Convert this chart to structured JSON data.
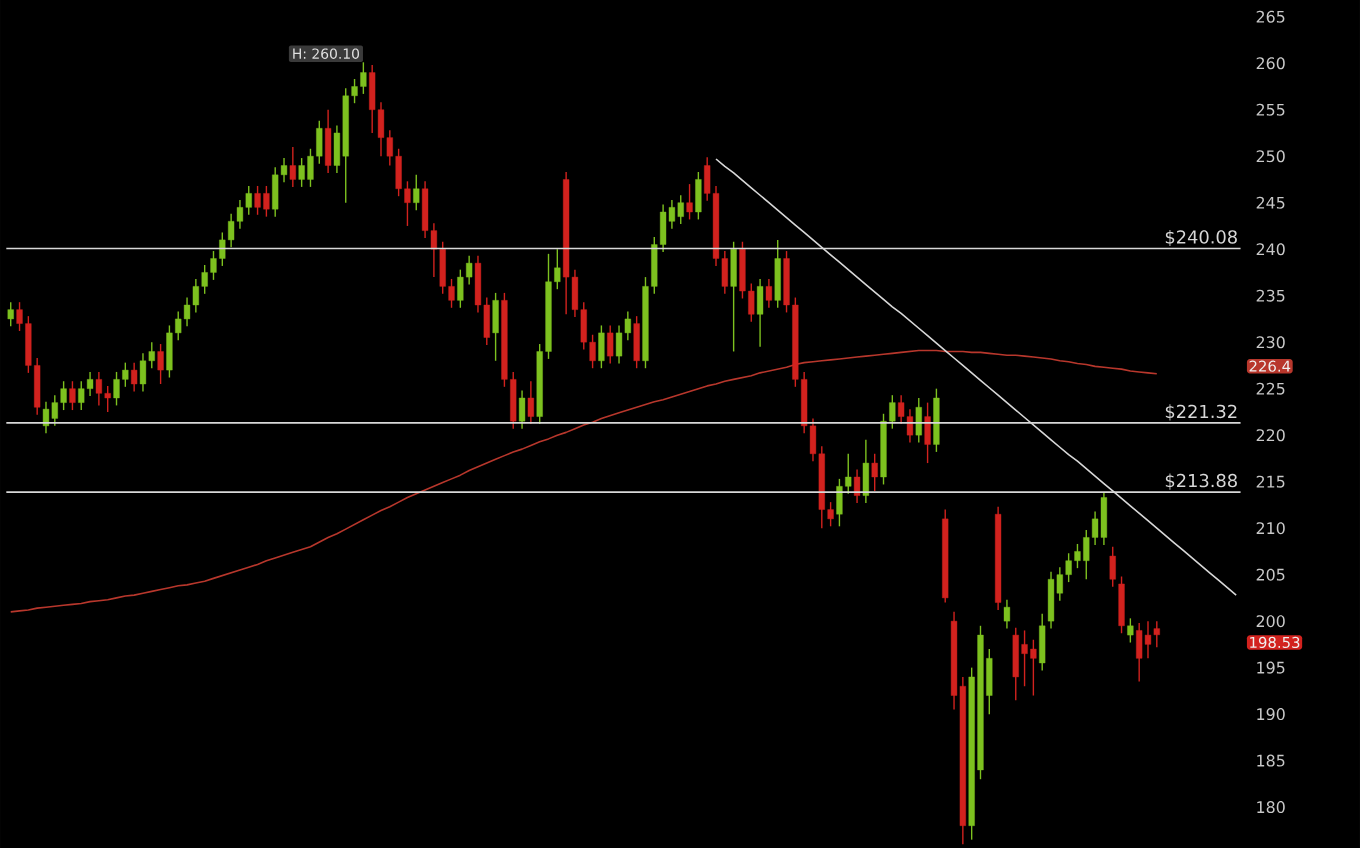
{
  "chart_data": {
    "type": "candlestick",
    "categories": [
      null,
      null,
      null,
      null,
      null,
      null,
      null,
      null,
      null,
      null,
      null,
      null,
      null,
      null,
      null,
      null,
      null,
      null,
      null,
      null,
      null,
      null,
      null,
      null,
      null,
      null,
      null,
      null,
      null,
      null,
      null,
      null,
      null,
      null,
      null,
      null,
      null,
      null,
      null,
      null,
      null,
      null,
      null,
      null,
      null,
      null,
      null,
      null,
      null,
      null,
      null,
      null,
      null,
      null,
      null,
      null,
      null,
      null,
      null,
      null,
      null,
      null,
      null,
      null,
      null,
      null,
      null,
      null,
      null,
      null,
      null,
      null,
      null,
      null,
      null,
      null,
      null,
      null,
      null,
      null,
      null,
      null,
      null,
      null,
      null,
      null,
      null,
      null,
      null,
      null,
      null,
      null,
      null,
      null,
      null,
      null,
      null,
      null,
      null,
      null,
      null,
      null,
      null,
      null,
      null,
      null,
      null,
      null,
      null,
      null,
      null,
      null,
      null,
      null,
      null,
      null,
      null,
      null,
      null,
      null,
      null,
      null,
      null,
      null,
      null,
      null,
      null,
      null,
      null,
      null,
      null,
      null,
      null,
      null,
      null,
      null,
      null,
      null,
      null,
      null
    ],
    "ohlc": [
      [
        232.5,
        234.3,
        231.7,
        233.5
      ],
      [
        233.5,
        234.3,
        231.2,
        232
      ],
      [
        232,
        232.8,
        226.7,
        227.5
      ],
      [
        227.5,
        228.3,
        222.2,
        223
      ],
      [
        221,
        223.6,
        220.2,
        222.8
      ],
      [
        221.8,
        224.3,
        221,
        223.5
      ],
      [
        223.5,
        225.8,
        222.7,
        225
      ],
      [
        225,
        225.8,
        222.7,
        223.5
      ],
      [
        223.5,
        225.8,
        222.7,
        225
      ],
      [
        225,
        226.8,
        224.2,
        226
      ],
      [
        226,
        226.8,
        223.2,
        224.5
      ],
      [
        224.5,
        225.3,
        222.5,
        224
      ],
      [
        224,
        226.8,
        223.2,
        226
      ],
      [
        226,
        227.8,
        225.2,
        227
      ],
      [
        227,
        227.8,
        224.7,
        225.5
      ],
      [
        225.5,
        228.8,
        224.7,
        228
      ],
      [
        228,
        230,
        227.2,
        229
      ],
      [
        229,
        229.8,
        225.5,
        227
      ],
      [
        227,
        231.8,
        226.2,
        231
      ],
      [
        231,
        233.3,
        230.2,
        232.5
      ],
      [
        232.5,
        234.8,
        231.7,
        234
      ],
      [
        234,
        236.8,
        233.2,
        236
      ],
      [
        236,
        238.3,
        235.2,
        237.5
      ],
      [
        237.5,
        239.8,
        236.7,
        239
      ],
      [
        239,
        241.8,
        238.2,
        241
      ],
      [
        241,
        243.8,
        240.2,
        243
      ],
      [
        243,
        245.3,
        242.2,
        244.5
      ],
      [
        244.5,
        246.8,
        243.7,
        246
      ],
      [
        246,
        246.8,
        243.7,
        244.5
      ],
      [
        246,
        246.8,
        243.5,
        244.3
      ],
      [
        244.3,
        248.8,
        243.5,
        248
      ],
      [
        248,
        249.8,
        247.2,
        249
      ],
      [
        249,
        251,
        246.7,
        247.5
      ],
      [
        247.5,
        249.8,
        246.7,
        249
      ],
      [
        247.5,
        250.8,
        246.7,
        250
      ],
      [
        250,
        253.8,
        249.2,
        253
      ],
      [
        253,
        255,
        248.2,
        249
      ],
      [
        249,
        253.3,
        248.2,
        252.5
      ],
      [
        250,
        257.3,
        245,
        256.5
      ],
      [
        256.5,
        258.3,
        255.7,
        257.5
      ],
      [
        257.5,
        260.1,
        256.7,
        259
      ],
      [
        259,
        259.8,
        252.5,
        255
      ],
      [
        255,
        255.8,
        250,
        252
      ],
      [
        252,
        252.8,
        249,
        250
      ],
      [
        250,
        250.8,
        245.7,
        246.5
      ],
      [
        246.5,
        247.3,
        242.5,
        245
      ],
      [
        245,
        248,
        244.2,
        246.5
      ],
      [
        246.5,
        247.3,
        241.2,
        242
      ],
      [
        242,
        242.8,
        237,
        240
      ],
      [
        240,
        240.8,
        235.2,
        236
      ],
      [
        236,
        236.8,
        233.7,
        234.5
      ],
      [
        234.5,
        237.8,
        233.7,
        237
      ],
      [
        237,
        239.3,
        236.2,
        238.5
      ],
      [
        238.5,
        239.3,
        233.2,
        234
      ],
      [
        234,
        234.8,
        229.7,
        230.5
      ],
      [
        231,
        235.3,
        228,
        234.5
      ],
      [
        234.5,
        235.3,
        225.2,
        226
      ],
      [
        226,
        226.8,
        220.7,
        221.5
      ],
      [
        221.5,
        224.8,
        220.7,
        224
      ],
      [
        224,
        225.8,
        221.2,
        222
      ],
      [
        222,
        229.8,
        221.2,
        229
      ],
      [
        229,
        239.5,
        228.2,
        236.5
      ],
      [
        236.5,
        240,
        235.7,
        238
      ],
      [
        247.5,
        248.3,
        233,
        237
      ],
      [
        237,
        237.8,
        232.7,
        233.5
      ],
      [
        233.5,
        234.3,
        229.2,
        230
      ],
      [
        230,
        230.8,
        227.2,
        228
      ],
      [
        228,
        231.8,
        227.2,
        231
      ],
      [
        231,
        231.8,
        227.7,
        228.5
      ],
      [
        228.5,
        231.8,
        227.7,
        231
      ],
      [
        231,
        233.3,
        230.2,
        232.5
      ],
      [
        232,
        232.8,
        227.2,
        228
      ],
      [
        228,
        237,
        227.2,
        236
      ],
      [
        236,
        241.3,
        235.2,
        240.5
      ],
      [
        240.5,
        244.8,
        239.7,
        244
      ],
      [
        243,
        245.3,
        242.2,
        244.5
      ],
      [
        243.5,
        245.8,
        242.7,
        245
      ],
      [
        245,
        247,
        243.2,
        244
      ],
      [
        244,
        248.3,
        243.2,
        247.5
      ],
      [
        249,
        249.9,
        245.2,
        246
      ],
      [
        246,
        246.8,
        238.2,
        239
      ],
      [
        239,
        239.8,
        235.2,
        236
      ],
      [
        236,
        240.8,
        229,
        240
      ],
      [
        240,
        240.8,
        234.7,
        235.5
      ],
      [
        235.5,
        236.3,
        232.2,
        233
      ],
      [
        233,
        236.8,
        229.5,
        236
      ],
      [
        236,
        236.8,
        233.7,
        234.5
      ],
      [
        234.5,
        241,
        233.7,
        239
      ],
      [
        239,
        239.8,
        233.2,
        234
      ],
      [
        234,
        234.8,
        225.2,
        226
      ],
      [
        226,
        226.8,
        220.2,
        221
      ],
      [
        221,
        221.8,
        217.2,
        218
      ],
      [
        218,
        218.8,
        210,
        212
      ],
      [
        212,
        212.8,
        210.2,
        211
      ],
      [
        211.5,
        215.3,
        210.2,
        214.5
      ],
      [
        214.5,
        218,
        213.7,
        215.5
      ],
      [
        215.5,
        216.3,
        212.7,
        213.5
      ],
      [
        213.5,
        219.5,
        212.7,
        217
      ],
      [
        217,
        218,
        214,
        215.5
      ],
      [
        215.5,
        222.3,
        214.7,
        221.5
      ],
      [
        221.5,
        224.3,
        220.7,
        223.5
      ],
      [
        223.5,
        224.3,
        221.2,
        222
      ],
      [
        222,
        222.8,
        219.2,
        220
      ],
      [
        220,
        224,
        219.2,
        223
      ],
      [
        222,
        223.5,
        217,
        219
      ],
      [
        219,
        225,
        218.2,
        224
      ],
      [
        211,
        212,
        202,
        202.5
      ],
      [
        200,
        201,
        190.5,
        192
      ],
      [
        193,
        194,
        176,
        178
      ],
      [
        178,
        195,
        176.5,
        194
      ],
      [
        184,
        199.5,
        183,
        198.5
      ],
      [
        192,
        197,
        190,
        196
      ],
      [
        211.5,
        212.3,
        201.2,
        202
      ],
      [
        200,
        202.3,
        199.2,
        201.5
      ],
      [
        198.5,
        199.3,
        191.5,
        194
      ],
      [
        197.5,
        199,
        193,
        196.5
      ],
      [
        197,
        198,
        192,
        196
      ],
      [
        195.5,
        200.8,
        194.7,
        199.5
      ],
      [
        200,
        205.3,
        199.2,
        204.5
      ],
      [
        203,
        205.8,
        202.2,
        205
      ],
      [
        205,
        207.3,
        204.2,
        206.5
      ],
      [
        206.5,
        208.3,
        205.7,
        207.5
      ],
      [
        206.5,
        209.8,
        204.5,
        209
      ],
      [
        209,
        211.8,
        208.2,
        211
      ],
      [
        209,
        213.9,
        208.2,
        213.3
      ],
      [
        207,
        208,
        203.7,
        204.5
      ],
      [
        204,
        204.8,
        198.7,
        199.5
      ],
      [
        198.5,
        200.3,
        197.7,
        199.5
      ],
      [
        199,
        199.8,
        193.5,
        196
      ],
      [
        198.5,
        200,
        196,
        197.5
      ],
      [
        199.2,
        200,
        197.2,
        198.53
      ],
      null,
      null,
      null,
      null,
      null,
      null,
      null,
      null,
      null
    ],
    "colors": [
      "#7dc11f",
      "#d2221e",
      "#d2221e",
      "#d2221e",
      "#7dc11f",
      "#7dc11f",
      "#7dc11f",
      "#d2221e",
      "#7dc11f",
      "#7dc11f",
      "#d2221e",
      "#d2221e",
      "#7dc11f",
      "#7dc11f",
      "#d2221e",
      "#7dc11f",
      "#7dc11f",
      "#d2221e",
      "#7dc11f",
      "#7dc11f",
      "#7dc11f",
      "#7dc11f",
      "#7dc11f",
      "#7dc11f",
      "#7dc11f",
      "#7dc11f",
      "#7dc11f",
      "#7dc11f",
      "#d2221e",
      "#d2221e",
      "#7dc11f",
      "#7dc11f",
      "#d2221e",
      "#7dc11f",
      "#7dc11f",
      "#7dc11f",
      "#d2221e",
      "#7dc11f",
      "#7dc11f",
      "#7dc11f",
      "#7dc11f",
      "#d2221e",
      "#d2221e",
      "#d2221e",
      "#d2221e",
      "#d2221e",
      "#7dc11f",
      "#d2221e",
      "#d2221e",
      "#d2221e",
      "#d2221e",
      "#7dc11f",
      "#7dc11f",
      "#d2221e",
      "#d2221e",
      "#7dc11f",
      "#d2221e",
      "#d2221e",
      "#7dc11f",
      "#d2221e",
      "#7dc11f",
      "#7dc11f",
      "#7dc11f",
      "#d2221e",
      "#d2221e",
      "#d2221e",
      "#d2221e",
      "#7dc11f",
      "#d2221e",
      "#7dc11f",
      "#7dc11f",
      "#d2221e",
      "#7dc11f",
      "#7dc11f",
      "#7dc11f",
      "#7dc11f",
      "#7dc11f",
      "#d2221e",
      "#7dc11f",
      "#d2221e",
      "#d2221e",
      "#d2221e",
      "#7dc11f",
      "#d2221e",
      "#d2221e",
      "#7dc11f",
      "#d2221e",
      "#7dc11f",
      "#d2221e",
      "#d2221e",
      "#d2221e",
      "#d2221e",
      "#d2221e",
      "#d2221e",
      "#7dc11f",
      "#7dc11f",
      "#d2221e",
      "#7dc11f",
      "#d2221e",
      "#7dc11f",
      "#7dc11f",
      "#d2221e",
      "#d2221e",
      "#7dc11f",
      "#d2221e",
      "#7dc11f",
      "#d2221e",
      "#d2221e",
      "#d2221e",
      "#7dc11f",
      "#7dc11f",
      "#7dc11f",
      "#d2221e",
      "#7dc11f",
      "#d2221e",
      "#d2221e",
      "#d2221e",
      "#7dc11f",
      "#7dc11f",
      "#7dc11f",
      "#7dc11f",
      "#7dc11f",
      "#7dc11f",
      "#7dc11f",
      "#7dc11f",
      "#d2221e",
      "#d2221e",
      "#7dc11f",
      "#d2221e",
      "#d2221e",
      "#d2221e",
      null,
      null,
      null,
      null,
      null,
      null,
      null,
      null,
      null
    ],
    "series": [
      {
        "type": "line",
        "color": "#b8372c",
        "values": [
          201.0,
          201.1,
          201.2,
          201.4,
          201.5,
          201.6,
          201.7,
          201.8,
          201.9,
          202.1,
          202.2,
          202.3,
          202.5,
          202.7,
          202.8,
          203.0,
          203.2,
          203.4,
          203.6,
          203.8,
          203.9,
          204.1,
          204.3,
          204.6,
          204.9,
          205.2,
          205.5,
          205.8,
          206.1,
          206.5,
          206.8,
          207.1,
          207.4,
          207.7,
          208.0,
          208.5,
          209.0,
          209.4,
          209.9,
          210.4,
          210.9,
          211.4,
          211.9,
          212.3,
          212.8,
          213.3,
          213.7,
          214.1,
          214.5,
          214.9,
          215.3,
          215.7,
          216.2,
          216.6,
          217.0,
          217.4,
          217.8,
          218.2,
          218.5,
          218.9,
          219.3,
          219.6,
          220.0,
          220.3,
          220.7,
          221.1,
          221.4,
          221.8,
          222.1,
          222.4,
          222.7,
          223.0,
          223.3,
          223.6,
          223.8,
          224.1,
          224.4,
          224.7,
          225.0,
          225.3,
          225.5,
          225.8,
          226.0,
          226.2,
          226.4,
          226.7,
          226.9,
          227.1,
          227.3,
          227.6,
          227.8,
          227.9,
          228.0,
          228.1,
          228.2,
          228.3,
          228.4,
          228.5,
          228.6,
          228.7,
          228.8,
          228.9,
          229.0,
          229.1,
          229.1,
          229.1,
          229.0,
          229.0,
          229.0,
          228.9,
          228.9,
          228.8,
          228.7,
          228.6,
          228.6,
          228.5,
          228.4,
          228.3,
          228.2,
          228.0,
          227.9,
          227.7,
          227.6,
          227.4,
          227.3,
          227.2,
          227.1,
          226.9,
          226.8,
          226.7,
          226.6,
          null,
          null,
          null,
          null,
          null,
          null,
          null,
          null,
          null
        ]
      },
      {
        "type": "line",
        "color": "#d8d8d8",
        "values": [
          null,
          null,
          null,
          null,
          null,
          null,
          null,
          null,
          null,
          null,
          null,
          null,
          null,
          null,
          null,
          null,
          null,
          null,
          null,
          null,
          null,
          null,
          null,
          null,
          null,
          null,
          null,
          null,
          null,
          null,
          null,
          null,
          null,
          null,
          null,
          null,
          null,
          null,
          null,
          null,
          null,
          null,
          null,
          null,
          null,
          null,
          null,
          null,
          null,
          null,
          null,
          null,
          null,
          null,
          null,
          null,
          null,
          null,
          null,
          null,
          null,
          null,
          null,
          null,
          null,
          null,
          null,
          null,
          null,
          null,
          null,
          null,
          null,
          null,
          null,
          null,
          null,
          null,
          null,
          null,
          249.7,
          248.9,
          248.2,
          247.4,
          246.6,
          245.8,
          245.0,
          244.2,
          243.4,
          242.6,
          241.8,
          241.0,
          240.2,
          239.4,
          238.6,
          237.8,
          237.0,
          236.2,
          235.4,
          234.6,
          233.8,
          233.1,
          232.3,
          231.5,
          230.7,
          229.9,
          229.1,
          228.3,
          227.5,
          226.7,
          225.9,
          225.1,
          224.3,
          223.5,
          222.7,
          221.9,
          221.1,
          220.3,
          219.5,
          218.7,
          217.9,
          217.2,
          216.4,
          215.6,
          214.8,
          214.0,
          213.2,
          212.4,
          211.6,
          210.8,
          210.0,
          209.2,
          208.4,
          207.6,
          206.8,
          206.0,
          205.2,
          204.4,
          203.6,
          202.8
        ]
      }
    ],
    "ref_lines": [
      {
        "axis": "y",
        "value": 240.08,
        "label": "$240.08",
        "color": "#d8d8d8"
      },
      {
        "axis": "y",
        "value": 221.32,
        "label": "$221.32",
        "color": "#d8d8d8"
      },
      {
        "axis": "y",
        "value": 213.88,
        "label": "$213.88",
        "color": "#d8d8d8"
      }
    ],
    "annotations": [
      "H: 260.10",
      "226.4",
      "198.53"
    ],
    "ylim": [
      175.6,
      266.8
    ],
    "yticks": [
      180,
      185,
      190,
      195,
      200,
      205,
      210,
      215,
      220,
      225,
      230,
      235,
      240,
      245,
      250,
      255,
      260,
      265
    ],
    "tick_labels": "y",
    "grid": false
  }
}
